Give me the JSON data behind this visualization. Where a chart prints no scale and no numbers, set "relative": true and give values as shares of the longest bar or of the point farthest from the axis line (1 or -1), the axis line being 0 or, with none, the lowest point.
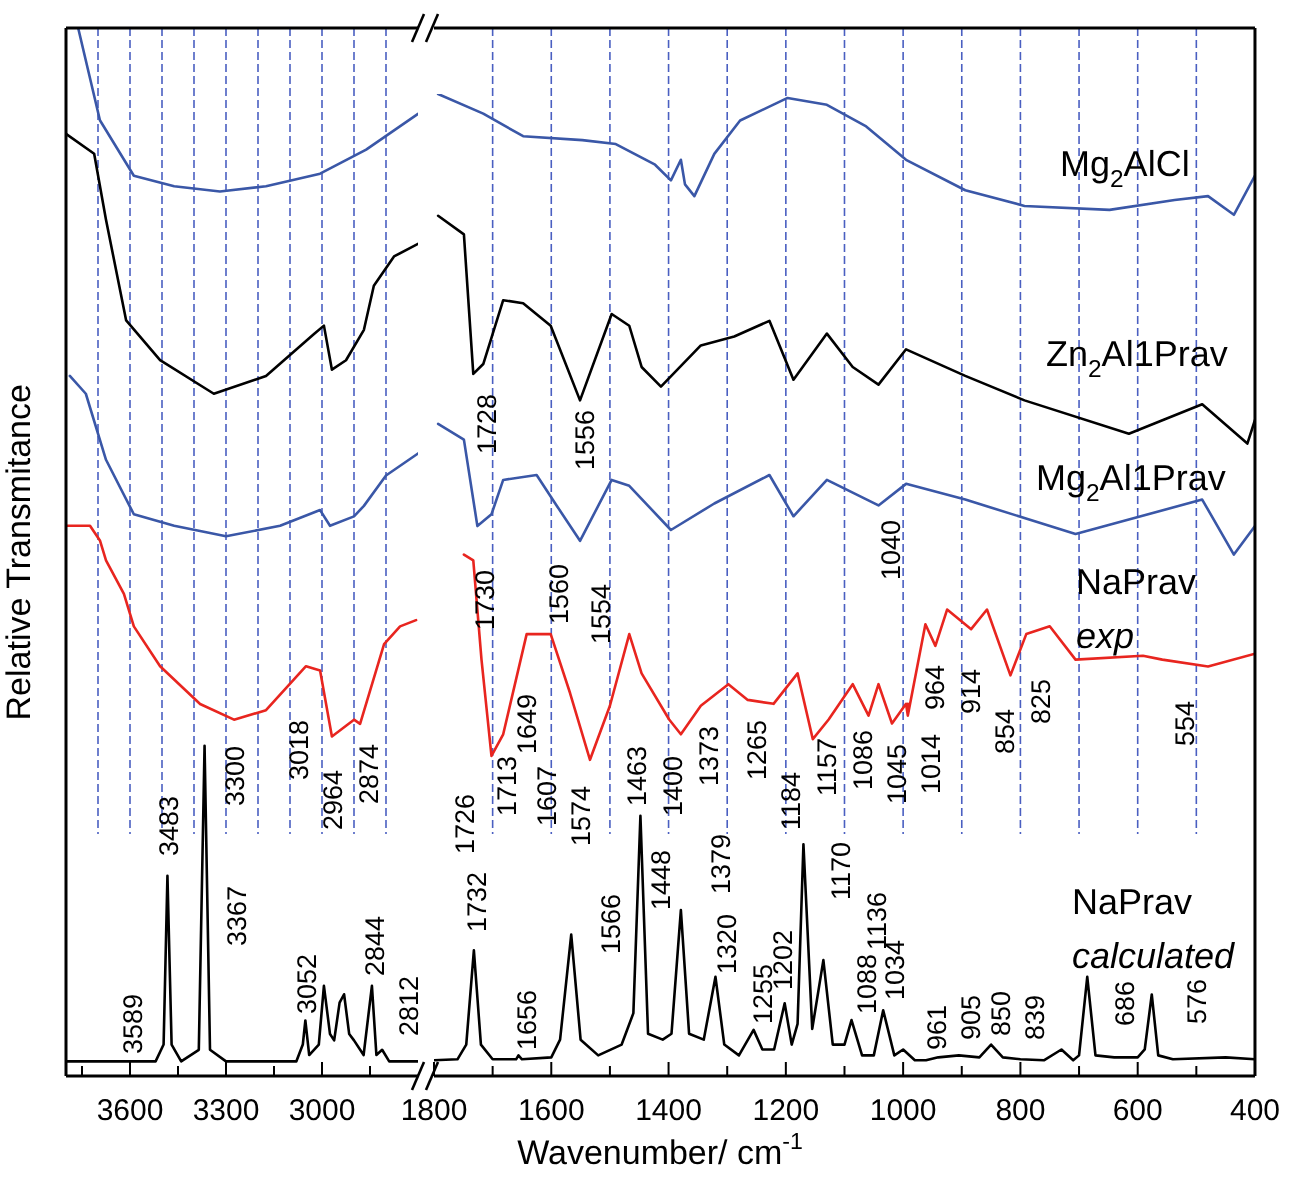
{
  "chart_data": [
    {
      "type": "line",
      "ylabel": "Relative Transmitance",
      "relative": true,
      "tick_labels": "x",
      "xlim": [
        3800,
        2700
      ],
      "xticks": [
        {
          "value": 3750,
          "label": null
        },
        3600,
        {
          "value": 3450,
          "label": null
        },
        3300,
        {
          "value": 3150,
          "label": null
        },
        3000,
        {
          "value": 2850,
          "label": null
        }
      ],
      "series": [
        {
          "color": "#3a57a7",
          "x": [
            3762,
            3694,
            3588,
            3462,
            3319,
            3175,
            3006,
            2862,
            2700
          ],
          "values": [
            1.0,
            0.912,
            0.859,
            0.849,
            0.844,
            0.849,
            0.861,
            0.884,
            0.918
          ]
        },
        {
          "color": "#000000",
          "x": [
            3800,
            3712,
            3675,
            3612,
            3506,
            3338,
            3175,
            3025,
            2994,
            2969,
            2925,
            2869,
            2838,
            2775,
            2700
          ],
          "values": [
            0.899,
            0.88,
            0.817,
            0.721,
            0.683,
            0.651,
            0.668,
            0.708,
            0.716,
            0.674,
            0.683,
            0.712,
            0.754,
            0.782,
            0.794
          ]
        },
        {
          "color": "#3a57a7",
          "x": [
            3788,
            3738,
            3675,
            3588,
            3462,
            3300,
            3131,
            3006,
            2975,
            2900,
            2869,
            2800,
            2700
          ],
          "values": [
            0.668,
            0.651,
            0.588,
            0.536,
            0.525,
            0.515,
            0.525,
            0.54,
            0.525,
            0.534,
            0.544,
            0.573,
            0.594
          ]
        },
        {
          "color": "#e8251f",
          "x": [
            3800,
            3725,
            3694,
            3675,
            3619,
            3588,
            3506,
            3381,
            3275,
            3175,
            3050,
            3006,
            2969,
            2900,
            2881,
            2806,
            2756,
            2706
          ],
          "values": [
            0.525,
            0.525,
            0.511,
            0.492,
            0.46,
            0.429,
            0.391,
            0.355,
            0.34,
            0.349,
            0.391,
            0.387,
            0.324,
            0.34,
            0.336,
            0.412,
            0.429,
            0.435
          ]
        },
        {
          "color": "#000000",
          "x": [
            3800,
            3520,
            3495,
            3483,
            3470,
            3440,
            3385,
            3367,
            3350,
            3300,
            3080,
            3060,
            3052,
            3040,
            3010,
            2994,
            2975,
            2962,
            2945,
            2931,
            2915,
            2900,
            2870,
            2844,
            2830,
            2812,
            2790,
            2700
          ],
          "values": [
            0.014,
            0.014,
            0.03,
            0.191,
            0.03,
            0.014,
            0.025,
            0.315,
            0.025,
            0.014,
            0.014,
            0.03,
            0.053,
            0.02,
            0.03,
            0.086,
            0.04,
            0.034,
            0.07,
            0.078,
            0.04,
            0.034,
            0.02,
            0.086,
            0.02,
            0.025,
            0.014,
            0.014
          ]
        }
      ],
      "ref_lines": [
        {
          "axis": "x",
          "value": 3700,
          "color": "#4a5fc1",
          "line_style": "dashed"
        },
        {
          "axis": "x",
          "value": 3600,
          "color": "#4a5fc1",
          "line_style": "dashed"
        },
        {
          "axis": "x",
          "value": 3500,
          "color": "#4a5fc1",
          "line_style": "dashed"
        },
        {
          "axis": "x",
          "value": 3400,
          "color": "#4a5fc1",
          "line_style": "dashed"
        },
        {
          "axis": "x",
          "value": 3300,
          "color": "#4a5fc1",
          "line_style": "dashed"
        },
        {
          "axis": "x",
          "value": 3200,
          "color": "#4a5fc1",
          "line_style": "dashed"
        },
        {
          "axis": "x",
          "value": 3100,
          "color": "#4a5fc1",
          "line_style": "dashed"
        },
        {
          "axis": "x",
          "value": 3000,
          "color": "#4a5fc1",
          "line_style": "dashed"
        },
        {
          "axis": "x",
          "value": 2900,
          "color": "#4a5fc1",
          "line_style": "dashed"
        },
        {
          "axis": "x",
          "value": 2800,
          "color": "#4a5fc1",
          "line_style": "dashed"
        }
      ],
      "annotations": [
        "3300",
        "3018",
        "2964",
        "2874",
        "3589",
        "3483",
        "3367",
        "3052",
        "2844",
        "2812"
      ]
    },
    {
      "type": "line",
      "xlabel": "Wavenumber/ cm$^{-1}$",
      "relative": true,
      "tick_labels": "x",
      "xlim": [
        1800,
        400
      ],
      "xticks": [
        1800,
        {
          "value": 1700,
          "label": null
        },
        1600,
        {
          "value": 1500,
          "label": null
        },
        1400,
        {
          "value": 1300,
          "label": null
        },
        1200,
        {
          "value": 1100,
          "label": null
        },
        1000,
        {
          "value": 900,
          "label": null
        },
        800,
        {
          "value": 700,
          "label": null
        },
        600,
        {
          "value": 500,
          "label": null
        },
        400
      ],
      "series": [
        {
          "name": "Mg$_{2}$AlCl",
          "color": "#3a57a7",
          "x": [
            1793,
            1716,
            1648,
            1547,
            1490,
            1423,
            1396,
            1379,
            1372,
            1356,
            1322,
            1278,
            1197,
            1130,
            1063,
            995,
            894,
            793,
            648,
            537,
            480,
            436,
            400
          ],
          "values": [
            1.0,
            0.98,
            0.957,
            0.953,
            0.949,
            0.928,
            0.912,
            0.933,
            0.908,
            0.896,
            0.939,
            0.973,
            0.996,
            0.989,
            0.967,
            0.933,
            0.902,
            0.886,
            0.882,
            0.892,
            0.896,
            0.877,
            0.917
          ]
        },
        {
          "name": "Zn$_{2}$Al1Prav",
          "color": "#000000",
          "x": [
            1793,
            1749,
            1733,
            1716,
            1682,
            1648,
            1601,
            1551,
            1497,
            1467,
            1446,
            1413,
            1345,
            1288,
            1228,
            1187,
            1130,
            1086,
            1042,
            995,
            894,
            793,
            615,
            490,
            413,
            400
          ],
          "values": [
            0.876,
            0.857,
            0.715,
            0.725,
            0.79,
            0.787,
            0.764,
            0.688,
            0.776,
            0.764,
            0.722,
            0.702,
            0.744,
            0.753,
            0.769,
            0.709,
            0.756,
            0.722,
            0.704,
            0.74,
            0.713,
            0.688,
            0.654,
            0.684,
            0.644,
            0.668
          ]
        },
        {
          "name": "Mg$_{2}$Al1Prav",
          "color": "#3a57a7",
          "x": [
            1793,
            1749,
            1726,
            1702,
            1682,
            1625,
            1591,
            1551,
            1497,
            1467,
            1396,
            1322,
            1228,
            1187,
            1130,
            1042,
            995,
            894,
            706,
            490,
            436,
            400
          ],
          "values": [
            0.664,
            0.648,
            0.56,
            0.572,
            0.607,
            0.612,
            0.581,
            0.545,
            0.607,
            0.601,
            0.556,
            0.583,
            0.612,
            0.57,
            0.607,
            0.581,
            0.603,
            0.587,
            0.552,
            0.587,
            0.531,
            0.56
          ]
        },
        {
          "name": "NaPrav\nexp",
          "color": "#e8251f",
          "x": [
            1749,
            1733,
            1719,
            1702,
            1682,
            1642,
            1601,
            1568,
            1534,
            1500,
            1467,
            1446,
            1399,
            1379,
            1345,
            1298,
            1265,
            1221,
            1180,
            1154,
            1127,
            1086,
            1059,
            1042,
            1019,
            995,
            992,
            962,
            945,
            925,
            884,
            857,
            817,
            790,
            750,
            706,
            591,
            558,
            480,
            400
          ],
          "values": [
            0.531,
            0.525,
            0.424,
            0.326,
            0.348,
            0.45,
            0.45,
            0.39,
            0.322,
            0.377,
            0.45,
            0.41,
            0.363,
            0.348,
            0.377,
            0.399,
            0.383,
            0.379,
            0.41,
            0.343,
            0.363,
            0.399,
            0.367,
            0.399,
            0.359,
            0.379,
            0.367,
            0.46,
            0.438,
            0.475,
            0.455,
            0.475,
            0.408,
            0.45,
            0.458,
            0.424,
            0.428,
            0.424,
            0.417,
            0.43
          ]
        },
        {
          "name": "NaPrav\ncalculated",
          "color": "#000000",
          "x": [
            1800,
            1760,
            1745,
            1732,
            1720,
            1700,
            1660,
            1656,
            1650,
            1600,
            1585,
            1566,
            1550,
            1520,
            1480,
            1460,
            1448,
            1435,
            1410,
            1395,
            1379,
            1365,
            1340,
            1320,
            1305,
            1280,
            1255,
            1240,
            1220,
            1202,
            1190,
            1180,
            1170,
            1155,
            1136,
            1120,
            1100,
            1088,
            1070,
            1050,
            1034,
            1015,
            1000,
            980,
            961,
            940,
            905,
            870,
            850,
            830,
            800,
            760,
            730,
            710,
            700,
            686,
            672,
            640,
            600,
            588,
            576,
            565,
            540,
            450,
            400
          ],
          "values": [
            0.016,
            0.017,
            0.032,
            0.128,
            0.032,
            0.017,
            0.017,
            0.021,
            0.017,
            0.019,
            0.037,
            0.144,
            0.037,
            0.021,
            0.032,
            0.064,
            0.265,
            0.043,
            0.037,
            0.043,
            0.169,
            0.043,
            0.037,
            0.101,
            0.032,
            0.021,
            0.047,
            0.027,
            0.027,
            0.074,
            0.032,
            0.053,
            0.236,
            0.048,
            0.118,
            0.032,
            0.032,
            0.057,
            0.021,
            0.021,
            0.067,
            0.021,
            0.027,
            0.016,
            0.016,
            0.019,
            0.021,
            0.019,
            0.032,
            0.019,
            0.017,
            0.016,
            0.027,
            0.016,
            0.021,
            0.101,
            0.021,
            0.019,
            0.019,
            0.027,
            0.083,
            0.021,
            0.017,
            0.019,
            0.017
          ]
        }
      ],
      "ref_lines": [
        {
          "axis": "x",
          "value": 1700,
          "color": "#4a5fc1",
          "line_style": "dashed"
        },
        {
          "axis": "x",
          "value": 1600,
          "color": "#4a5fc1",
          "line_style": "dashed"
        },
        {
          "axis": "x",
          "value": 1500,
          "color": "#4a5fc1",
          "line_style": "dashed"
        },
        {
          "axis": "x",
          "value": 1400,
          "color": "#4a5fc1",
          "line_style": "dashed"
        },
        {
          "axis": "x",
          "value": 1300,
          "color": "#4a5fc1",
          "line_style": "dashed"
        },
        {
          "axis": "x",
          "value": 1200,
          "color": "#4a5fc1",
          "line_style": "dashed"
        },
        {
          "axis": "x",
          "value": 1100,
          "color": "#4a5fc1",
          "line_style": "dashed"
        },
        {
          "axis": "x",
          "value": 1000,
          "color": "#4a5fc1",
          "line_style": "dashed"
        },
        {
          "axis": "x",
          "value": 900,
          "color": "#4a5fc1",
          "line_style": "dashed"
        },
        {
          "axis": "x",
          "value": 800,
          "color": "#4a5fc1",
          "line_style": "dashed"
        },
        {
          "axis": "x",
          "value": 700,
          "color": "#4a5fc1",
          "line_style": "dashed"
        },
        {
          "axis": "x",
          "value": 600,
          "color": "#4a5fc1",
          "line_style": "dashed"
        },
        {
          "axis": "x",
          "value": 500,
          "color": "#4a5fc1",
          "line_style": "dashed"
        }
      ],
      "annotations": [
        "1728",
        "1556",
        "1730",
        "1560",
        "1554",
        "1040",
        "1726",
        "1713",
        "1649",
        "1607",
        "1574",
        "1463",
        "1400",
        "1373",
        "1265",
        "1184",
        "1157",
        "1086",
        "1045",
        "1014",
        "964",
        "914",
        "854",
        "825",
        "554",
        "1732",
        "1656",
        "1566",
        "1448",
        "1379",
        "1320",
        "1255",
        "1202",
        "1170",
        "1136",
        "1088",
        "1034",
        "961",
        "905",
        "850",
        "839",
        "686",
        "576"
      ]
    }
  ]
}
